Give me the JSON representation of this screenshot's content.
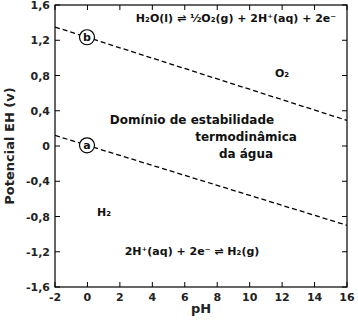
{
  "chart_data": {
    "type": "line",
    "x_label": "pH",
    "y_label": "Potencial EH (v)",
    "xlim": [
      -2,
      16
    ],
    "xticks": [
      -2,
      0,
      2,
      4,
      6,
      8,
      10,
      12,
      14,
      16
    ],
    "ylim": [
      -1.6,
      1.6
    ],
    "yticks": [
      {
        "value": -1.6,
        "label": "-1,6"
      },
      {
        "value": -1.2,
        "label": "-1,2"
      },
      {
        "value": -0.8,
        "label": "-0,8"
      },
      {
        "value": -0.4,
        "label": "-0,4"
      },
      0,
      {
        "value": 0.4,
        "label": "0,4"
      },
      {
        "value": 0.8,
        "label": "0,8"
      },
      {
        "value": 1.2,
        "label": "1,2"
      },
      {
        "value": 1.6,
        "label": "1,6"
      }
    ],
    "grid": false,
    "series": [
      {
        "name": "b",
        "color": "#000000",
        "line_style": "dashed",
        "x": [
          -2,
          16
        ],
        "values": [
          1.35,
          0.29
        ]
      },
      {
        "name": "a",
        "color": "#000000",
        "line_style": "dashed",
        "x": [
          -2,
          16
        ],
        "values": [
          0.12,
          -0.9
        ]
      }
    ],
    "annotations": [
      "H₂O(l) ⇌ ½O₂(g) + 2H⁺(aq) + 2e⁻",
      "O₂",
      "Domínio de estabilidade",
      "termodinâmica",
      "da água",
      "H₂",
      "2H⁺(aq) + 2e⁻ ⇌ H₂(g)"
    ]
  }
}
